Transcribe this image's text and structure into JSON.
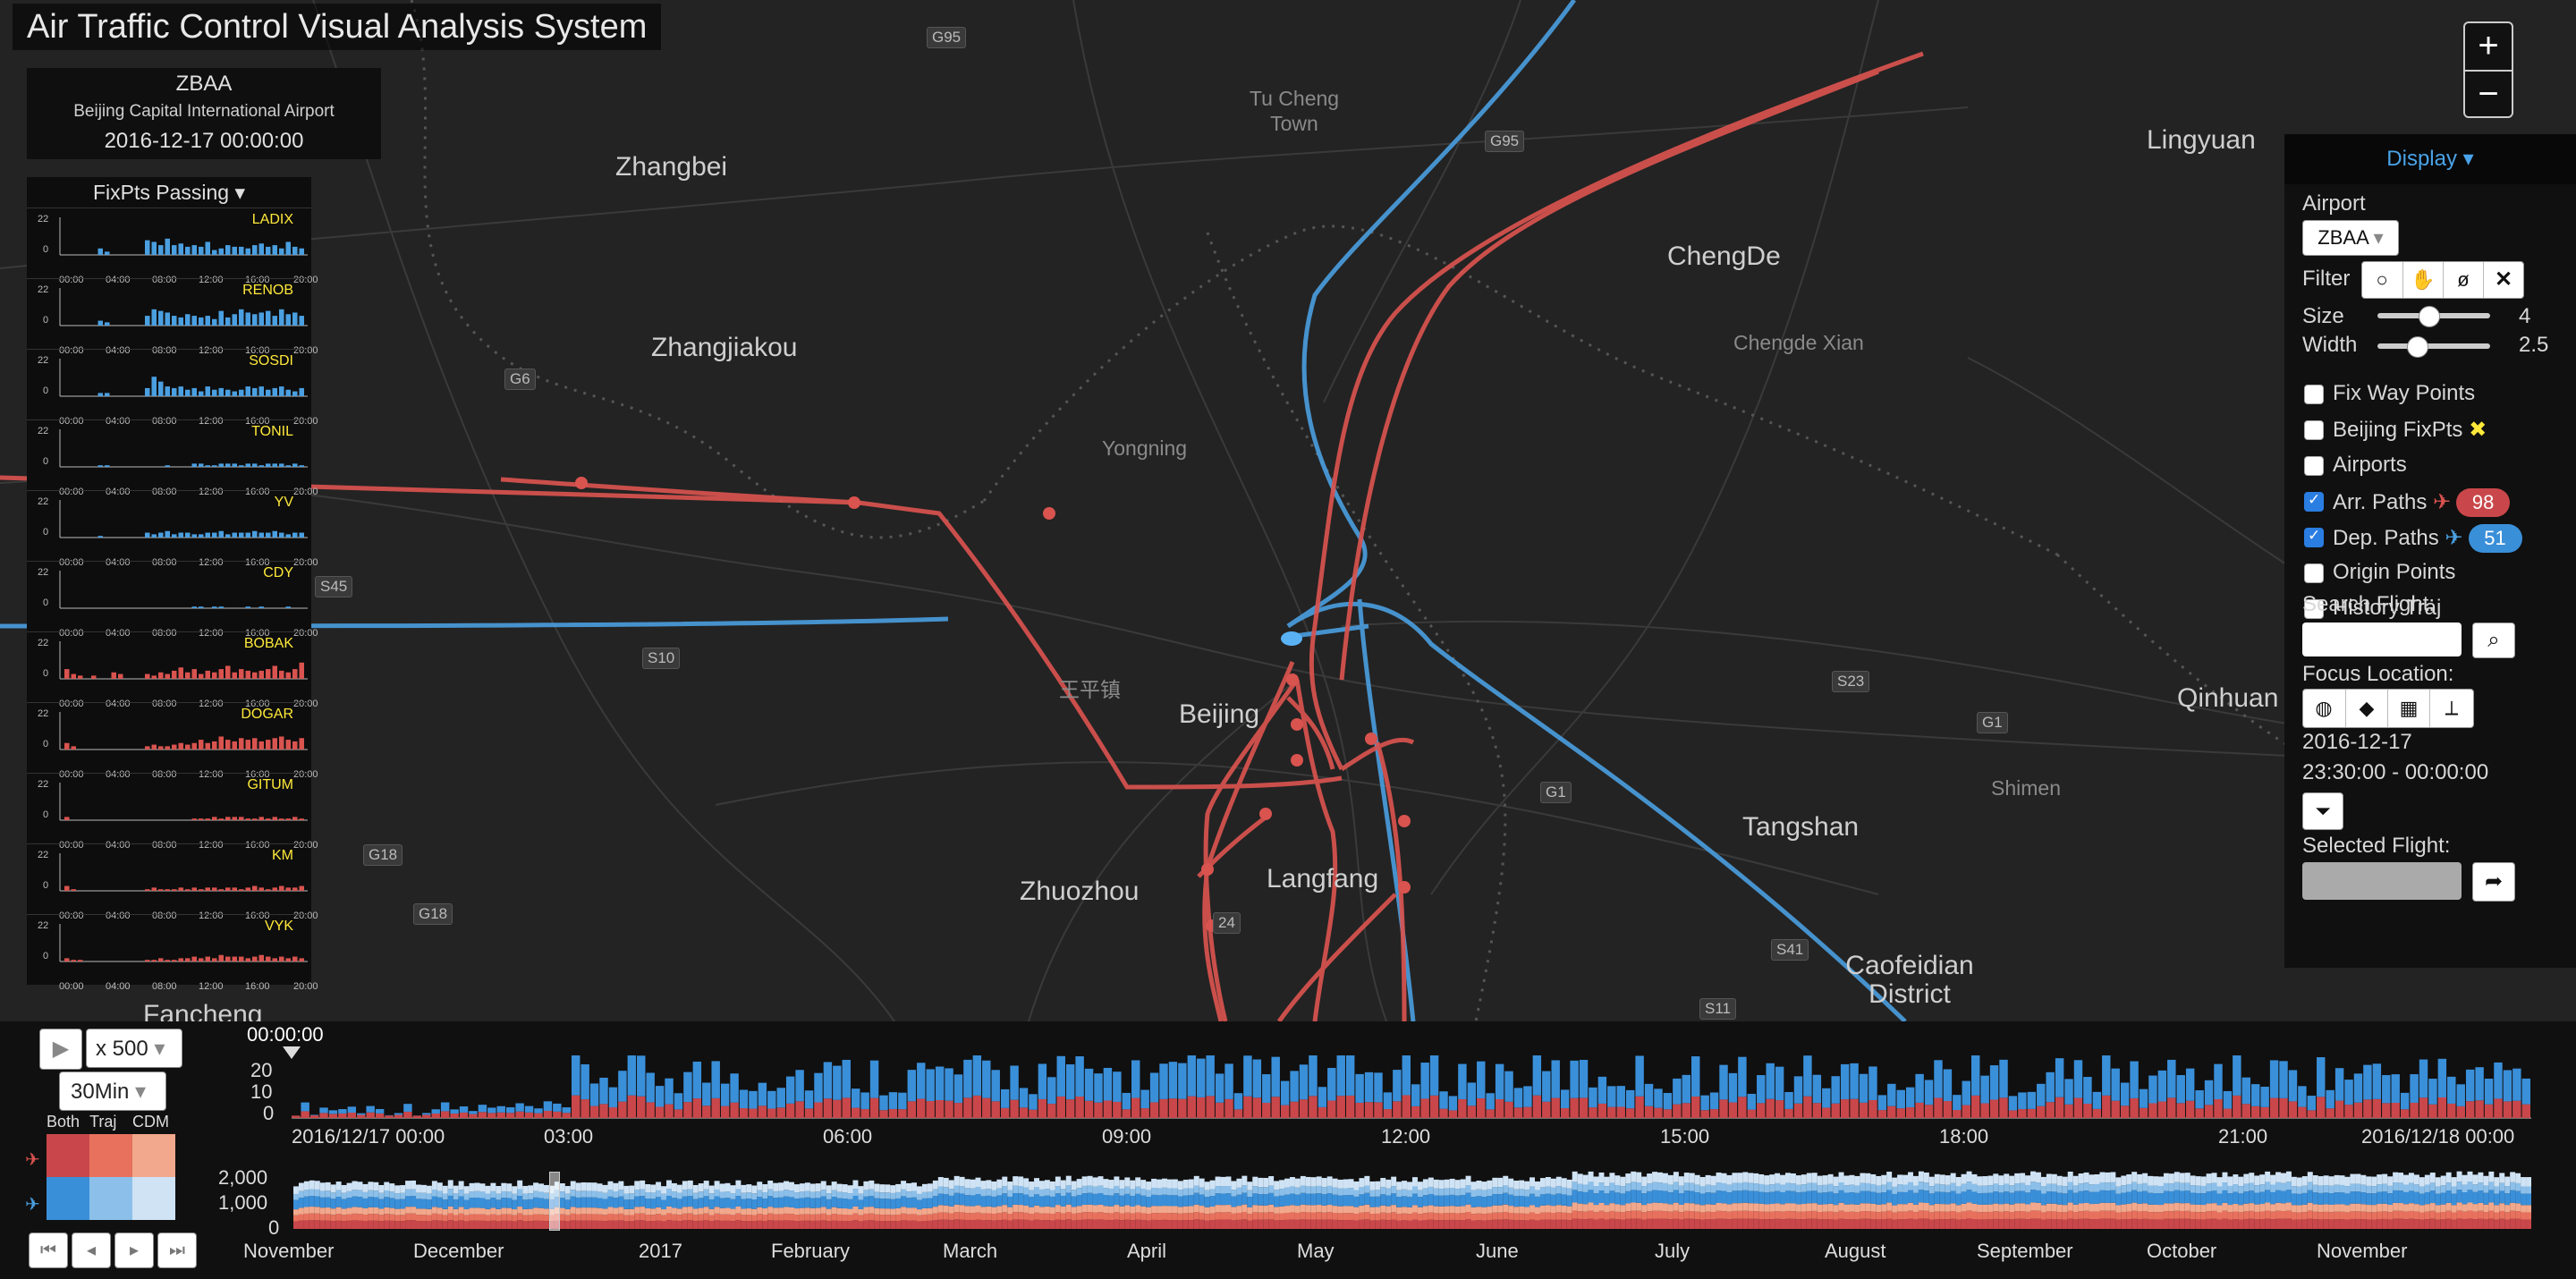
{
  "app": {
    "title": "Air Traffic Control Visual Analysis System"
  },
  "airport": {
    "code": "ZBAA",
    "name": "Beijing Capital International Airport",
    "datetime": "2016-12-17 00:00:00"
  },
  "fixpoints": {
    "header": "FixPts Passing ▾",
    "y_max": "22",
    "y_min": "0",
    "time_ticks": [
      "00:00",
      "04:00",
      "08:00",
      "12:00",
      "16:00",
      "20:00"
    ],
    "rows": [
      {
        "name": "LADIX",
        "type": "dep",
        "counts": [
          0,
          0,
          0,
          0,
          0,
          4,
          2,
          0,
          0,
          0,
          0,
          0,
          9,
          8,
          6,
          10,
          6,
          7,
          5,
          6,
          5,
          8,
          3,
          4,
          6,
          5,
          5,
          4,
          6,
          7,
          5,
          6,
          4,
          8,
          5,
          4
        ]
      },
      {
        "name": "RENOB",
        "type": "dep",
        "counts": [
          0,
          0,
          0,
          0,
          0,
          3,
          2,
          0,
          0,
          0,
          0,
          0,
          6,
          10,
          9,
          8,
          6,
          5,
          7,
          6,
          5,
          6,
          4,
          9,
          5,
          7,
          10,
          8,
          7,
          8,
          9,
          6,
          10,
          7,
          8,
          6
        ]
      },
      {
        "name": "SOSDI",
        "type": "dep",
        "counts": [
          0,
          0,
          0,
          0,
          0,
          2,
          2,
          0,
          0,
          0,
          0,
          0,
          5,
          12,
          9,
          6,
          5,
          6,
          4,
          5,
          3,
          6,
          4,
          5,
          4,
          3,
          4,
          6,
          5,
          6,
          4,
          5,
          6,
          4,
          3,
          5
        ]
      },
      {
        "name": "TONIL",
        "type": "dep",
        "counts": [
          0,
          0,
          0,
          0,
          0,
          1,
          1,
          0,
          0,
          0,
          0,
          0,
          0,
          0,
          0,
          1,
          0,
          0,
          0,
          2,
          2,
          1,
          1,
          2,
          2,
          2,
          1,
          2,
          2,
          1,
          2,
          2,
          2,
          1,
          2,
          1
        ]
      },
      {
        "name": "YV",
        "type": "dep",
        "counts": [
          0,
          0,
          0,
          0,
          0,
          1,
          0,
          0,
          0,
          0,
          0,
          0,
          3,
          2,
          3,
          4,
          2,
          3,
          3,
          2,
          2,
          3,
          3,
          4,
          2,
          3,
          3,
          3,
          4,
          3,
          3,
          4,
          3,
          2,
          3,
          3
        ]
      },
      {
        "name": "CDY",
        "type": "dep",
        "counts": [
          0,
          0,
          0,
          0,
          0,
          0,
          0,
          0,
          0,
          0,
          0,
          0,
          0,
          0,
          0,
          0,
          0,
          0,
          0,
          1,
          1,
          0,
          1,
          1,
          0,
          0,
          0,
          1,
          0,
          1,
          0,
          0,
          0,
          1,
          0,
          0
        ]
      },
      {
        "name": "BOBAK",
        "type": "arr",
        "counts": [
          6,
          3,
          2,
          0,
          2,
          0,
          0,
          4,
          3,
          0,
          0,
          0,
          3,
          2,
          4,
          3,
          5,
          7,
          4,
          6,
          3,
          5,
          4,
          6,
          8,
          4,
          6,
          5,
          4,
          5,
          6,
          8,
          5,
          4,
          6,
          10
        ]
      },
      {
        "name": "DOGAR",
        "type": "arr",
        "counts": [
          4,
          2,
          0,
          0,
          0,
          0,
          0,
          0,
          0,
          0,
          0,
          0,
          2,
          3,
          2,
          2,
          3,
          4,
          3,
          4,
          6,
          4,
          5,
          8,
          6,
          5,
          7,
          6,
          7,
          5,
          6,
          7,
          8,
          6,
          5,
          7
        ]
      },
      {
        "name": "GITUM",
        "type": "arr",
        "counts": [
          2,
          0,
          0,
          0,
          0,
          0,
          0,
          0,
          0,
          0,
          0,
          0,
          0,
          0,
          0,
          0,
          0,
          0,
          0,
          1,
          1,
          1,
          2,
          1,
          2,
          2,
          2,
          1,
          1,
          2,
          1,
          2,
          1,
          1,
          2,
          1
        ]
      },
      {
        "name": "KM",
        "type": "arr",
        "counts": [
          3,
          1,
          0,
          0,
          0,
          0,
          0,
          0,
          0,
          0,
          0,
          0,
          1,
          2,
          1,
          1,
          1,
          2,
          1,
          2,
          1,
          2,
          2,
          1,
          2,
          2,
          1,
          2,
          3,
          2,
          1,
          2,
          3,
          2,
          2,
          3
        ]
      },
      {
        "name": "VYK",
        "type": "arr",
        "counts": [
          2,
          1,
          1,
          0,
          0,
          0,
          0,
          0,
          0,
          0,
          0,
          0,
          1,
          1,
          2,
          1,
          1,
          2,
          2,
          3,
          2,
          3,
          2,
          4,
          3,
          3,
          3,
          2,
          3,
          4,
          3,
          2,
          3,
          2,
          3,
          2
        ]
      }
    ]
  },
  "map_labels": {
    "cities": [
      "Zhangbei",
      "Zhangjiakou",
      "ChengDe",
      "Beijing",
      "Lingyuan",
      "Tangshan",
      "Zhuozhou",
      "Langfang",
      "Qinhuan",
      "Caofeidian District",
      "Fancheng"
    ],
    "towns": [
      "Tu Cheng Town",
      "Chengde Xian",
      "Yongning",
      "王平镇",
      "Shimen"
    ],
    "roads": [
      "G95",
      "G95",
      "G6",
      "S45",
      "S10",
      "S23",
      "G1",
      "G1",
      "S41",
      "S11",
      "G18",
      "G18",
      "24"
    ]
  },
  "zoom": {
    "in": "+",
    "out": "−"
  },
  "display": {
    "toggle": "Display ▾",
    "airport_label": "Airport",
    "airport_value": "ZBAA",
    "filter_label": "Filter",
    "filter_icons": [
      "circle-select-icon",
      "hand-pan-icon",
      "eye-slash-icon",
      "close-icon"
    ],
    "size_label": "Size",
    "size_value": "4",
    "size_level": 0.45,
    "width_label": "Width",
    "width_value": "2.5",
    "width_level": 0.35,
    "checkboxes": [
      {
        "label": "Fix Way Points",
        "checked": false
      },
      {
        "label": "Beijing FixPts",
        "checked": false
      },
      {
        "label": "Airports",
        "checked": false
      },
      {
        "label": "Arr. Paths",
        "checked": true
      },
      {
        "label": "Dep. Paths",
        "checked": true
      },
      {
        "label": "Origin Points",
        "checked": false
      },
      {
        "label": "History Traj",
        "checked": false
      }
    ],
    "arr_count": "98",
    "dep_count": "51",
    "search_label": "Search Flight:",
    "focus_label": "Focus Location:",
    "date": "2016-12-17",
    "time_range": "23:30:00 - 00:00:00",
    "selected_label": "Selected Flight:",
    "colors": {
      "arr": "#d9534f",
      "dep": "#4a9fe0",
      "pill_arr": "#c9474a",
      "pill_dep": "#3a8fd9"
    }
  },
  "playback": {
    "play": "▶",
    "speed": "x 500",
    "interval": "30Min",
    "legend_labels": [
      "Both",
      "Traj",
      "CDM"
    ],
    "current_time": "00:00:00"
  },
  "timeline": {
    "y_ticks": [
      "20",
      "10",
      "0"
    ],
    "x_labels": [
      "2016/12/17 00:00",
      "03:00",
      "06:00",
      "09:00",
      "12:00",
      "15:00",
      "18:00",
      "21:00",
      "2016/12/18 00:00"
    ],
    "overview_y_ticks": [
      "2,000",
      "1,000",
      "0"
    ],
    "months": [
      "November",
      "December",
      "2017",
      "February",
      "March",
      "April",
      "May",
      "June",
      "July",
      "August",
      "September",
      "October",
      "November"
    ]
  }
}
